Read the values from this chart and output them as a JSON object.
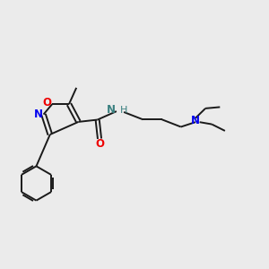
{
  "bg_color": "#ebebeb",
  "bond_color": "#1a1a1a",
  "N_color": "#0000ee",
  "O_color": "#ee0000",
  "NH_color": "#3a8080",
  "figsize": [
    3.0,
    3.0
  ],
  "dpi": 100,
  "xlim": [
    0,
    10
  ],
  "ylim": [
    0,
    10
  ]
}
